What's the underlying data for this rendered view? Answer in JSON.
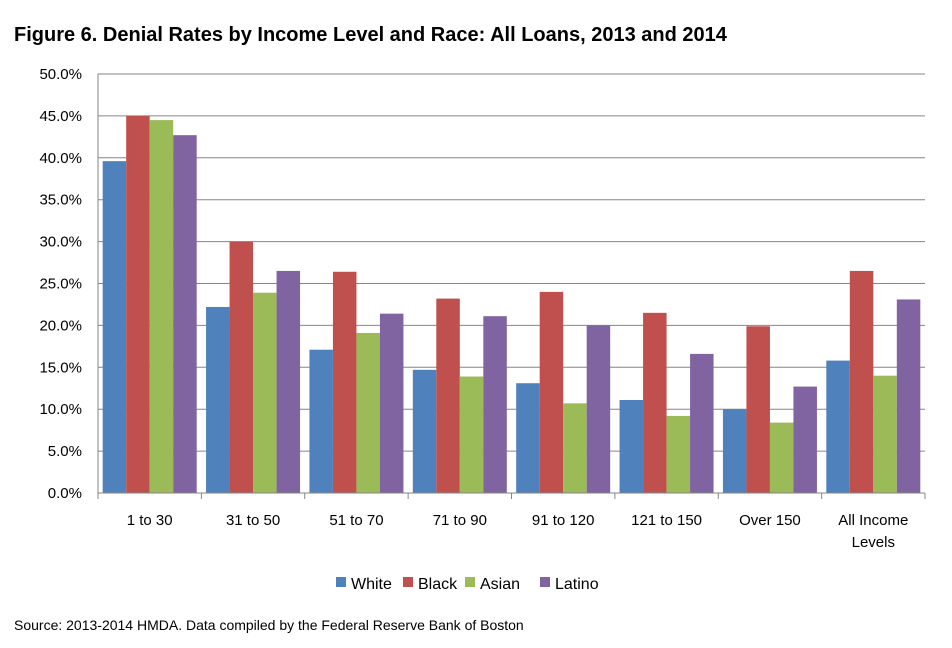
{
  "chart_data": {
    "type": "bar",
    "title": "Figure 6. Denial Rates by Income Level and Race: All Loans, 2013 and 2014",
    "categories": [
      "1 to 30",
      "31 to 50",
      "51 to 70",
      "71 to 90",
      "91 to 120",
      "121 to 150",
      "Over 150",
      "All Income Levels"
    ],
    "series": [
      {
        "name": "White",
        "color": "#4F81BD",
        "values": [
          39.6,
          22.2,
          17.1,
          14.7,
          13.1,
          11.1,
          10.0,
          15.8
        ]
      },
      {
        "name": "Black",
        "color": "#C0504D",
        "values": [
          45.0,
          30.0,
          26.4,
          23.2,
          24.0,
          21.5,
          19.9,
          26.5
        ]
      },
      {
        "name": "Asian",
        "color": "#9BBB59",
        "values": [
          44.5,
          23.9,
          19.1,
          13.9,
          10.7,
          9.2,
          8.4,
          14.0
        ]
      },
      {
        "name": "Latino",
        "color": "#8064A2",
        "values": [
          42.7,
          26.5,
          21.4,
          21.1,
          20.0,
          16.6,
          12.7,
          23.1
        ]
      }
    ],
    "ylim": [
      0,
      50
    ],
    "yticks": [
      "0.0%",
      "5.0%",
      "10.0%",
      "15.0%",
      "20.0%",
      "25.0%",
      "30.0%",
      "35.0%",
      "40.0%",
      "45.0%",
      "50.0%"
    ],
    "grid": true,
    "legend_position": "bottom"
  },
  "source": "Source: 2013-2014 HMDA. Data compiled by the Federal Reserve Bank of Boston"
}
